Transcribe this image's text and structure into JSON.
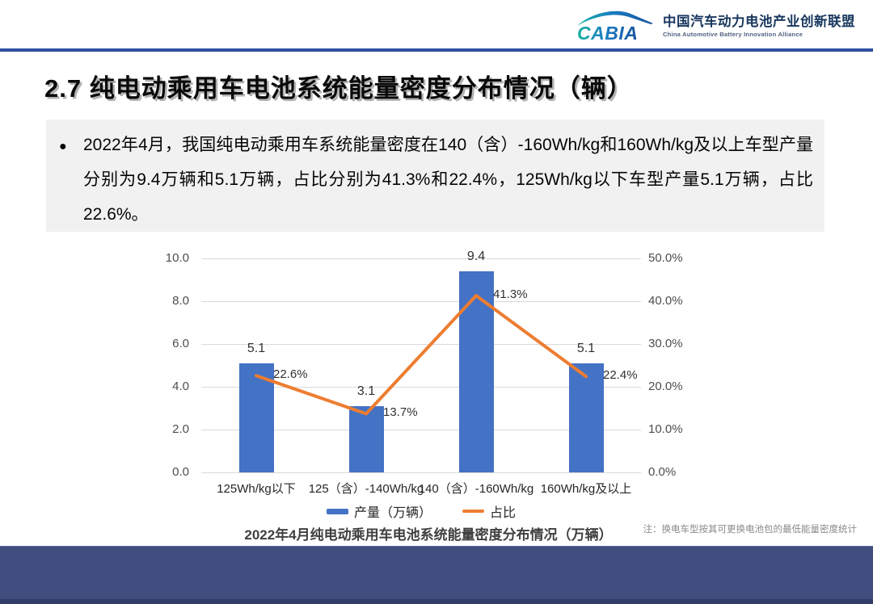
{
  "header": {
    "logo_text": "CABIA",
    "org_name_zh": "中国汽车动力电池产业创新联盟",
    "org_name_en": "China Automotive Battery Innovation Alliance"
  },
  "title": "2.7 纯电动乘用车电池系统能量密度分布情况（辆）",
  "summary": {
    "bullet": "●",
    "text": "2022年4月，我国纯电动乘用车系统能量密度在140（含）-160Wh/kg和160Wh/kg及以上车型产量分别为9.4万辆和5.1万辆，占比分别为41.3%和22.4%，125Wh/kg以下车型产量5.1万辆，占比22.6%。"
  },
  "chart_data": {
    "type": "bar",
    "subtype": "bar-line combo, dual axis",
    "categories": [
      "125Wh/kg以下",
      "125（含）-140Wh/kg",
      "140（含）-160Wh/kg",
      "160Wh/kg及以上"
    ],
    "series": [
      {
        "name": "产量（万辆）",
        "type": "bar",
        "axis": "left",
        "color": "#4472C4",
        "values": [
          5.1,
          3.1,
          9.4,
          5.1
        ],
        "labels": [
          "5.1",
          "3.1",
          "9.4",
          "5.1"
        ]
      },
      {
        "name": "占比",
        "type": "line",
        "axis": "right",
        "color": "#ED7D31",
        "values": [
          22.6,
          13.7,
          41.3,
          22.4
        ],
        "labels": [
          "22.6%",
          "13.7%",
          "41.3%",
          "22.4%"
        ]
      }
    ],
    "left_axis": {
      "min": 0,
      "max": 10,
      "step": 2,
      "ticks": [
        "0.0",
        "2.0",
        "4.0",
        "6.0",
        "8.0",
        "10.0"
      ]
    },
    "right_axis": {
      "min": 0,
      "max": 50,
      "step": 10,
      "ticks": [
        "0.0%",
        "10.0%",
        "20.0%",
        "30.0%",
        "40.0%",
        "50.0%"
      ]
    },
    "grid": true,
    "legend_position": "bottom",
    "title": "2022年4月纯电动乘用车电池系统能量密度分布情况（万辆）"
  },
  "chart_caption": "2022年4月纯电动乘用车电池系统能量密度分布情况（万辆）",
  "note": "注：换电车型按其可更换电池包的最低能量密度统计",
  "colors": {
    "bar": "#4472C4",
    "line": "#ED7D31",
    "gridline": "#D9D9D9",
    "header_rule": "#2E4FA0",
    "footer": "#414D7E",
    "summary_bg": "#F1F1F1"
  }
}
